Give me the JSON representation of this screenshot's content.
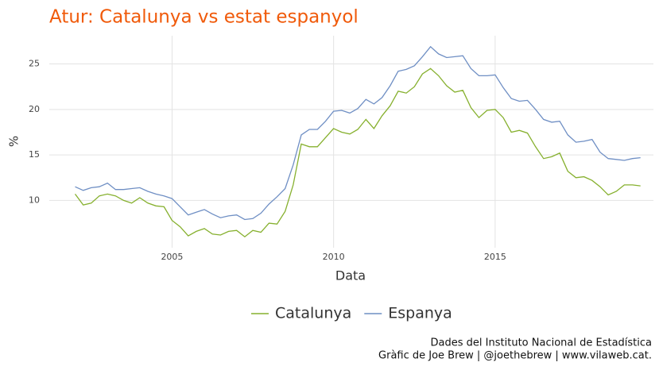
{
  "chart_data": {
    "type": "line",
    "title": "Atur: Catalunya vs estat espanyol",
    "xlabel": "Data",
    "ylabel": "%",
    "caption": [
      "Dades del Instituto Nacional de Estadística",
      "Gràfic de Joe Brew | @joethebrew | www.vilaweb.cat."
    ],
    "x": [
      2002,
      2002.25,
      2002.5,
      2002.75,
      2003,
      2003.25,
      2003.5,
      2003.75,
      2004,
      2004.25,
      2004.5,
      2004.75,
      2005,
      2005.25,
      2005.5,
      2005.75,
      2006,
      2006.25,
      2006.5,
      2006.75,
      2007,
      2007.25,
      2007.5,
      2007.75,
      2008,
      2008.25,
      2008.5,
      2008.75,
      2009,
      2009.25,
      2009.5,
      2009.75,
      2010,
      2010.25,
      2010.5,
      2010.75,
      2011,
      2011.25,
      2011.5,
      2011.75,
      2012,
      2012.25,
      2012.5,
      2012.75,
      2013,
      2013.25,
      2013.5,
      2013.75,
      2014,
      2014.25,
      2014.5,
      2014.75,
      2015,
      2015.25,
      2015.5,
      2015.75,
      2016,
      2016.25,
      2016.5,
      2016.75,
      2017,
      2017.25,
      2017.5,
      2017.75,
      2018,
      2018.25,
      2018.5,
      2018.75,
      2019,
      2019.25,
      2019.5
    ],
    "series": [
      {
        "name": "Catalunya",
        "color": "#86b02e",
        "values": [
          10.7,
          9.5,
          9.7,
          10.5,
          10.7,
          10.5,
          10.0,
          9.7,
          10.3,
          9.7,
          9.4,
          9.3,
          7.8,
          7.1,
          6.1,
          6.6,
          6.9,
          6.3,
          6.2,
          6.6,
          6.7,
          6.0,
          6.7,
          6.5,
          7.5,
          7.4,
          8.8,
          11.7,
          16.2,
          15.9,
          15.9,
          16.9,
          17.9,
          17.5,
          17.3,
          17.8,
          18.9,
          17.9,
          19.3,
          20.4,
          22.0,
          21.8,
          22.5,
          23.9,
          24.5,
          23.7,
          22.6,
          21.9,
          22.1,
          20.2,
          19.1,
          19.9,
          20.0,
          19.1,
          17.5,
          17.7,
          17.4,
          15.9,
          14.6,
          14.8,
          15.2,
          13.2,
          12.5,
          12.6,
          12.2,
          11.5,
          10.6,
          11.0,
          11.7,
          11.7,
          11.6
        ]
      },
      {
        "name": "Espanya",
        "color": "#6f8fc4",
        "values": [
          11.5,
          11.1,
          11.4,
          11.5,
          11.9,
          11.2,
          11.2,
          11.3,
          11.4,
          11.0,
          10.7,
          10.5,
          10.2,
          9.3,
          8.4,
          8.7,
          9.0,
          8.5,
          8.1,
          8.3,
          8.4,
          7.9,
          8.0,
          8.6,
          9.6,
          10.4,
          11.3,
          13.9,
          17.2,
          17.8,
          17.8,
          18.7,
          19.8,
          19.9,
          19.6,
          20.1,
          21.1,
          20.6,
          21.3,
          22.6,
          24.2,
          24.4,
          24.8,
          25.8,
          26.9,
          26.1,
          25.7,
          25.8,
          25.9,
          24.5,
          23.7,
          23.7,
          23.8,
          22.4,
          21.2,
          20.9,
          21.0,
          20.0,
          18.9,
          18.6,
          18.7,
          17.2,
          16.4,
          16.5,
          16.7,
          15.3,
          14.6,
          14.5,
          14.4,
          14.6,
          14.7
        ]
      }
    ],
    "xlim": [
      2001.2,
      2019.9
    ],
    "ylim": [
      4.8,
      28.1
    ],
    "xticks": [
      2005,
      2010,
      2015
    ],
    "yticks": [
      10,
      15,
      20,
      25
    ],
    "grid": true,
    "legend": "bottom"
  }
}
